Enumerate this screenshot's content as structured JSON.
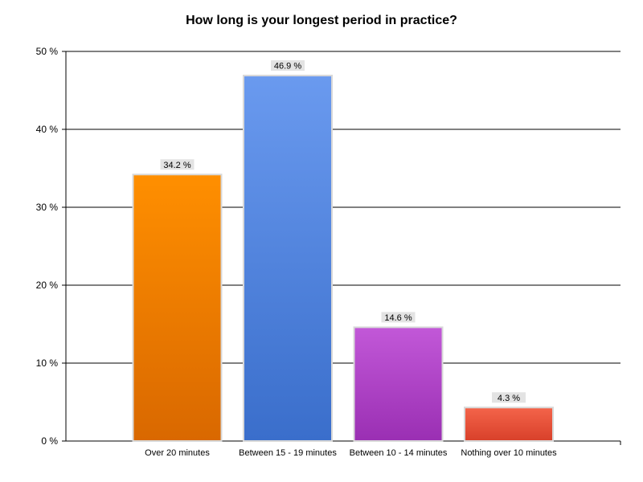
{
  "chart_data": {
    "type": "bar",
    "title": "How long is your longest period in practice?",
    "categories": [
      "Over 20 minutes",
      "Between 15 - 19 minutes",
      "Between 10 - 14 minutes",
      "Nothing over 10 minutes"
    ],
    "values": [
      34.2,
      46.9,
      14.6,
      4.3
    ],
    "data_labels": [
      "34.2 %",
      "46.9 %",
      "14.6 %",
      "4.3 %"
    ],
    "yticks": [
      0,
      10,
      20,
      30,
      40,
      50
    ],
    "ytick_labels": [
      "0 %",
      "10 %",
      "20 %",
      "30 %",
      "40 %",
      "50 %"
    ],
    "ylim": [
      0,
      50
    ],
    "xlabel": "",
    "ylabel": "",
    "grid": true,
    "legend": "none",
    "bar_colors": [
      {
        "top": "#ff8f00",
        "bottom": "#d96800"
      },
      {
        "top": "#6a9aef",
        "bottom": "#3a6ecb"
      },
      {
        "top": "#c258d8",
        "bottom": "#9a2fb3"
      },
      {
        "top": "#f4644a",
        "bottom": "#d8402a"
      }
    ]
  }
}
